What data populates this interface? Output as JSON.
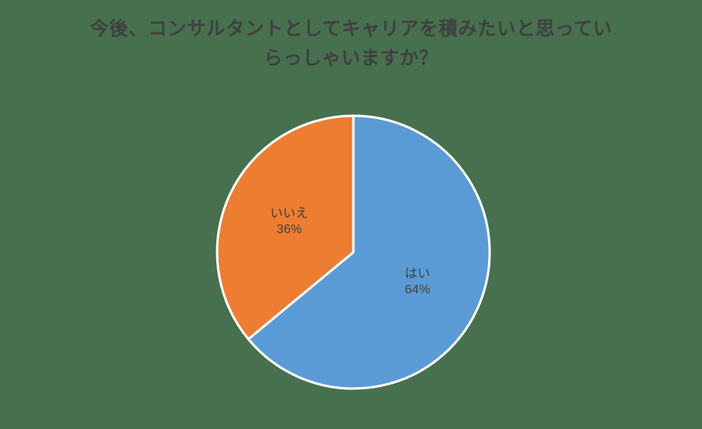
{
  "page": {
    "background_color": "#47704E"
  },
  "chart_title": {
    "full_text": "今後、コンサルタントとしてキャリアを積みたいと思っていらっしゃいますか？",
    "lines": [
      "今後、コンサルタントとしてキャリアを積みたいと思ってい",
      "らっしゃいますか？"
    ],
    "color": "#404040"
  },
  "chart_data": {
    "type": "pie",
    "title": "今後、コンサルタントとしてキャリアを積みたいと思っていらっしゃいますか？",
    "start_angle_deg": 0,
    "direction": "clockwise",
    "legend": "none",
    "slices": [
      {
        "name": "yes-slice",
        "label": "はい",
        "value": 64,
        "pct_label": "64%",
        "color": "#5B9BD5"
      },
      {
        "name": "no-slice",
        "label": "いいえ",
        "value": 36,
        "pct_label": "36%",
        "color": "#ED7D31"
      }
    ],
    "label_color": "#404040",
    "slice_border_color": "#FFFFFF"
  }
}
